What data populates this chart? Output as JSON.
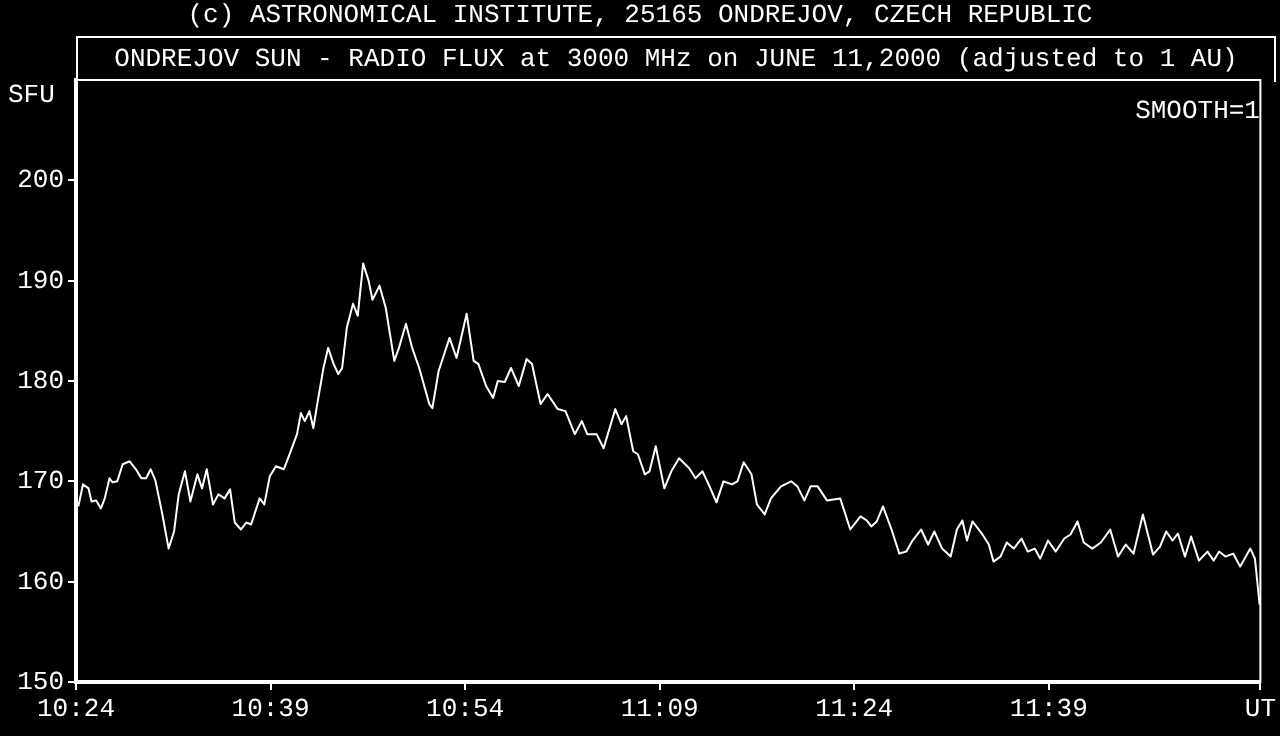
{
  "chart_data": {
    "type": "line",
    "title": "(c) ASTRONOMICAL INSTITUTE, 25165 ONDREJOV, CZECH REPUBLIC",
    "subtitle": "ONDREJOV SUN - RADIO FLUX at 3000 MHz on JUNE 11,2000 (adjusted to 1 AU)",
    "ylabel": "SFU",
    "annotations": [
      "SMOOTH=1"
    ],
    "x": [
      10.403,
      10.409,
      10.416,
      10.42,
      10.426,
      10.432,
      10.437,
      10.443,
      10.447,
      10.453,
      10.46,
      10.469,
      10.477,
      10.484,
      10.49,
      10.496,
      10.502,
      10.511,
      10.519,
      10.526,
      10.532,
      10.54,
      10.547,
      10.556,
      10.562,
      10.568,
      10.576,
      10.583,
      10.591,
      10.598,
      10.604,
      10.612,
      10.619,
      10.625,
      10.636,
      10.642,
      10.649,
      10.657,
      10.667,
      10.676,
      10.684,
      10.689,
      10.694,
      10.7,
      10.705,
      10.71,
      10.718,
      10.724,
      10.731,
      10.737,
      10.742,
      10.748,
      10.756,
      10.762,
      10.769,
      10.776,
      10.781,
      10.79,
      10.798,
      10.809,
      10.815,
      10.824,
      10.832,
      10.841,
      10.854,
      10.858,
      10.866,
      10.88,
      10.889,
      10.902,
      10.911,
      10.917,
      10.927,
      10.936,
      10.942,
      10.951,
      10.959,
      10.969,
      10.979,
      10.986,
      10.997,
      11.006,
      11.019,
      11.029,
      11.041,
      11.05,
      11.057,
      11.069,
      11.078,
      11.093,
      11.101,
      11.107,
      11.116,
      11.122,
      11.131,
      11.137,
      11.145,
      11.156,
      11.165,
      11.175,
      11.188,
      11.196,
      11.205,
      11.213,
      11.223,
      11.232,
      11.243,
      11.25,
      11.258,
      11.268,
      11.275,
      11.285,
      11.293,
      11.306,
      11.319,
      11.327,
      11.336,
      11.344,
      11.353,
      11.365,
      11.382,
      11.395,
      11.408,
      11.416,
      11.422,
      11.429,
      11.437,
      11.448,
      11.458,
      11.467,
      11.475,
      11.486,
      11.495,
      11.503,
      11.513,
      11.524,
      11.532,
      11.539,
      11.545,
      11.552,
      11.564,
      11.573,
      11.579,
      11.588,
      11.596,
      11.605,
      11.615,
      11.623,
      11.632,
      11.639,
      11.649,
      11.659,
      11.67,
      11.678,
      11.687,
      11.695,
      11.706,
      11.717,
      11.729,
      11.739,
      11.749,
      11.759,
      11.771,
      11.784,
      11.793,
      11.801,
      11.809,
      11.816,
      11.825,
      11.833,
      11.843,
      11.854,
      11.862,
      11.869,
      11.877,
      11.887,
      11.896,
      11.909,
      11.915,
      11.921
    ],
    "series": [
      {
        "color": "#ffffff",
        "values": [
          167.5,
          169.7,
          169.3,
          168,
          168.1,
          167.3,
          168.3,
          170.3,
          169.9,
          170,
          171.7,
          172,
          171.2,
          170.3,
          170.3,
          171.2,
          170.1,
          166.7,
          163.3,
          165,
          168.7,
          171,
          168,
          170.7,
          169.3,
          171.2,
          167.7,
          168.7,
          168.3,
          169.2,
          165.9,
          165.2,
          165.9,
          165.7,
          168.3,
          167.7,
          170.5,
          171.5,
          171.2,
          173,
          174.7,
          176.8,
          176,
          177,
          175.3,
          177.7,
          181.3,
          183.3,
          181.7,
          180.7,
          181.3,
          185.3,
          187.7,
          186.5,
          191.7,
          190,
          188.1,
          189.5,
          187.3,
          182,
          183.3,
          185.7,
          183.3,
          181.3,
          177.7,
          177.3,
          181,
          184.3,
          182.3,
          186.7,
          182,
          181.7,
          179.5,
          178.3,
          180,
          179.9,
          181.3,
          179.5,
          182.2,
          181.7,
          177.7,
          178.7,
          177.2,
          177,
          174.7,
          176,
          174.7,
          174.7,
          173.3,
          177.2,
          175.7,
          176.5,
          173,
          172.7,
          170.7,
          171,
          173.5,
          169.3,
          171,
          172.3,
          171.3,
          170.3,
          171,
          169.7,
          167.9,
          170,
          169.7,
          170,
          171.9,
          170.7,
          167.7,
          166.7,
          168.3,
          169.5,
          170,
          169.5,
          168.1,
          169.5,
          169.5,
          168.1,
          168.3,
          165.2,
          166.5,
          166.1,
          165.5,
          166,
          167.5,
          165.2,
          162.8,
          163,
          164.1,
          165.2,
          163.7,
          165,
          163.3,
          162.5,
          165.2,
          166.1,
          164.1,
          166,
          164.8,
          163.7,
          162,
          162.5,
          163.9,
          163.3,
          164.3,
          163,
          163.3,
          162.3,
          164.1,
          163,
          164.3,
          164.7,
          166,
          163.9,
          163.3,
          163.9,
          165.2,
          162.5,
          163.7,
          162.8,
          166.7,
          162.7,
          163.5,
          165,
          164.1,
          164.8,
          162.5,
          164.5,
          162.1,
          163,
          162.1,
          163,
          162.5,
          162.8,
          161.5,
          163.3,
          162.3,
          157.7
        ]
      }
    ],
    "xlim": [
      10.4,
      11.922
    ],
    "xticks": [
      {
        "value": 10.4,
        "label": "10:24"
      },
      {
        "value": 10.65,
        "label": "10:39"
      },
      {
        "value": 10.9,
        "label": "10:54"
      },
      {
        "value": 11.15,
        "label": "11:09"
      },
      {
        "value": 11.4,
        "label": "11:24"
      },
      {
        "value": 11.65,
        "label": "11:39"
      },
      {
        "value": 11.922,
        "label": "UT"
      }
    ],
    "ylim": [
      150,
      210
    ],
    "yticks": [
      150,
      160,
      170,
      180,
      190,
      200
    ],
    "grid": false,
    "legend": false
  }
}
